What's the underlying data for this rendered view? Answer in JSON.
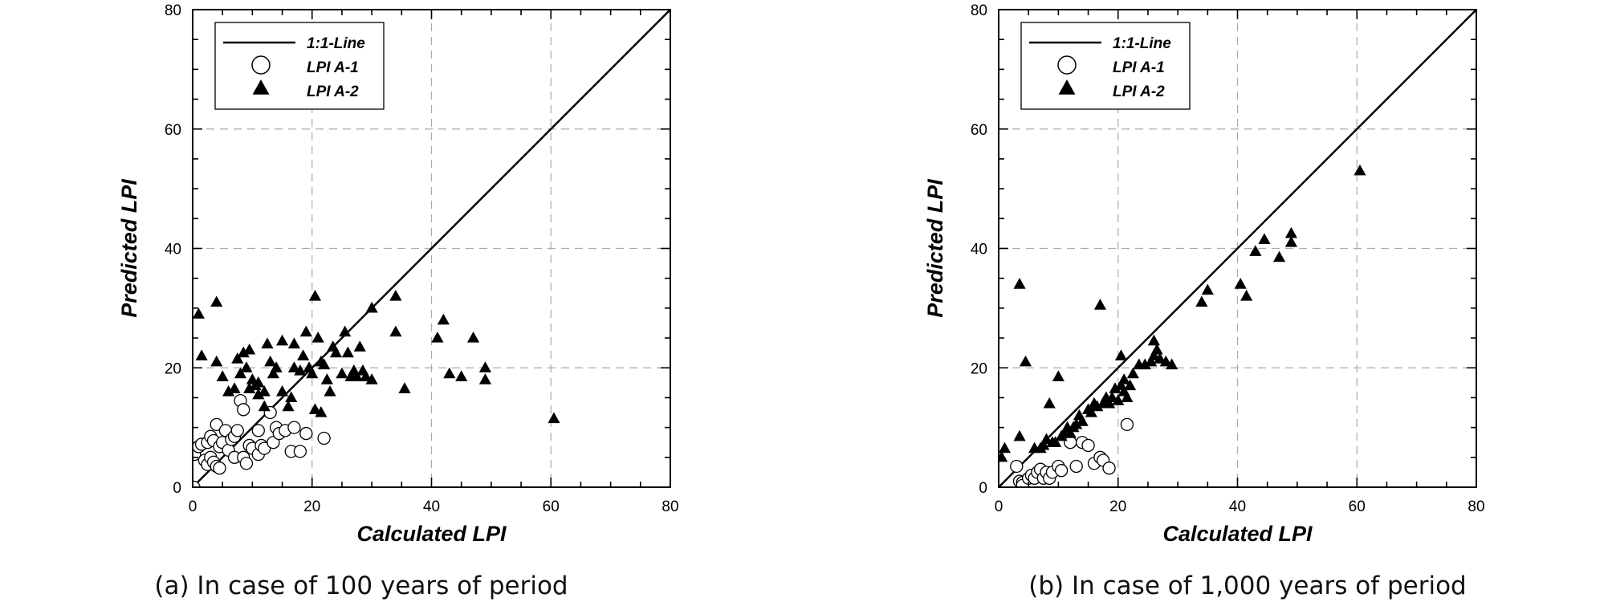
{
  "chart_data": [
    {
      "type": "scatter",
      "caption": "(a) In case of 100 years of period",
      "xlabel": "Calculated LPI",
      "ylabel": "Predicted LPI",
      "xlim": [
        0,
        80
      ],
      "ylim": [
        0,
        80
      ],
      "xticks": [
        "0",
        "20",
        "40",
        "60",
        "80"
      ],
      "yticks": [
        "0",
        "20",
        "40",
        "60",
        "80"
      ],
      "grid": true,
      "legend_position": "top-left",
      "legend": [
        "1:1-Line",
        "LPI A-1",
        "LPI A-2"
      ],
      "reference_line": {
        "name": "1:1-Line",
        "x": [
          0,
          80
        ],
        "y": [
          0,
          80
        ]
      },
      "series": [
        {
          "name": "LPI A-1",
          "marker": "open-circle",
          "points": [
            [
              0.2,
              0
            ],
            [
              0.3,
              5.5
            ],
            [
              1,
              6.8
            ],
            [
              1.5,
              7.2
            ],
            [
              2,
              4.5
            ],
            [
              2.5,
              3.8
            ],
            [
              2.5,
              7.5
            ],
            [
              3,
              5
            ],
            [
              3,
              8.5
            ],
            [
              3.5,
              4.2
            ],
            [
              3.5,
              7.8
            ],
            [
              4,
              3.5
            ],
            [
              4,
              10.5
            ],
            [
              4.5,
              3.2
            ],
            [
              4.5,
              6.8
            ],
            [
              5,
              7.5
            ],
            [
              5.5,
              9.5
            ],
            [
              6,
              6.2
            ],
            [
              6.5,
              8
            ],
            [
              7,
              8.5
            ],
            [
              7,
              5
            ],
            [
              7.5,
              9.5
            ],
            [
              8,
              14.5
            ],
            [
              8.5,
              13
            ],
            [
              8.5,
              5
            ],
            [
              9,
              4
            ],
            [
              9.5,
              7
            ],
            [
              10,
              6.5
            ],
            [
              11,
              5.5
            ],
            [
              11,
              9.5
            ],
            [
              11.5,
              7
            ],
            [
              12,
              6.5
            ],
            [
              13,
              12.5
            ],
            [
              13.5,
              7.5
            ],
            [
              14,
              10
            ],
            [
              14.5,
              9
            ],
            [
              15.5,
              9.5
            ],
            [
              16.5,
              6
            ],
            [
              17,
              10
            ],
            [
              18,
              6
            ],
            [
              19,
              9
            ],
            [
              22,
              8.2
            ]
          ]
        },
        {
          "name": "LPI A-2",
          "marker": "filled-triangle",
          "points": [
            [
              1,
              29
            ],
            [
              1.5,
              22
            ],
            [
              4,
              31
            ],
            [
              4,
              21
            ],
            [
              5,
              18.5
            ],
            [
              6,
              16
            ],
            [
              7,
              16.5
            ],
            [
              7.5,
              21.5
            ],
            [
              8,
              19
            ],
            [
              8.5,
              22.5
            ],
            [
              9,
              20
            ],
            [
              9.5,
              23
            ],
            [
              9.5,
              16.5
            ],
            [
              10,
              18
            ],
            [
              10.5,
              17
            ],
            [
              11,
              15.5
            ],
            [
              11,
              17.5
            ],
            [
              12,
              16
            ],
            [
              12,
              13.5
            ],
            [
              12.5,
              24
            ],
            [
              13,
              21
            ],
            [
              13.5,
              19
            ],
            [
              14,
              20
            ],
            [
              15,
              24.5
            ],
            [
              15,
              16
            ],
            [
              16,
              13.5
            ],
            [
              16.5,
              15
            ],
            [
              17,
              24
            ],
            [
              17,
              20
            ],
            [
              18,
              19.5
            ],
            [
              18.5,
              22
            ],
            [
              19,
              26
            ],
            [
              19.5,
              20
            ],
            [
              20,
              19
            ],
            [
              20.5,
              32
            ],
            [
              20.5,
              13
            ],
            [
              21,
              25
            ],
            [
              21.5,
              12.5
            ],
            [
              21.5,
              21
            ],
            [
              22,
              20.5
            ],
            [
              22.5,
              18
            ],
            [
              23,
              16
            ],
            [
              23.5,
              23.5
            ],
            [
              24,
              22.5
            ],
            [
              25,
              19
            ],
            [
              25.5,
              26
            ],
            [
              26,
              22.5
            ],
            [
              26.5,
              18.5
            ],
            [
              27,
              19.5
            ],
            [
              27.5,
              18.5
            ],
            [
              28,
              23.5
            ],
            [
              28.5,
              19.5
            ],
            [
              29,
              18.5
            ],
            [
              30,
              18
            ],
            [
              30,
              30
            ],
            [
              34,
              32
            ],
            [
              34,
              26
            ],
            [
              35.5,
              16.5
            ],
            [
              41,
              25
            ],
            [
              42,
              28
            ],
            [
              43,
              19
            ],
            [
              45,
              18.5
            ],
            [
              47,
              25
            ],
            [
              49,
              20
            ],
            [
              49,
              18
            ],
            [
              60.5,
              11.5
            ]
          ]
        }
      ]
    },
    {
      "type": "scatter",
      "caption": "(b) In case of 1,000 years of period",
      "xlabel": "Calculated LPI",
      "ylabel": "Predicted LPI",
      "xlim": [
        0,
        80
      ],
      "ylim": [
        0,
        80
      ],
      "xticks": [
        "0",
        "20",
        "40",
        "60",
        "80"
      ],
      "yticks": [
        "0",
        "20",
        "40",
        "60",
        "80"
      ],
      "grid": true,
      "legend_position": "top-left",
      "legend": [
        "1:1-Line",
        "LPI A-1",
        "LPI A-2"
      ],
      "reference_line": {
        "name": "1:1-Line",
        "x": [
          0,
          80
        ],
        "y": [
          0,
          80
        ]
      },
      "series": [
        {
          "name": "LPI A-1",
          "marker": "open-circle",
          "points": [
            [
              3,
              3.5
            ],
            [
              3.5,
              1
            ],
            [
              4,
              0.8
            ],
            [
              4,
              0.3
            ],
            [
              5,
              1.5
            ],
            [
              5.5,
              2
            ],
            [
              6,
              1.5
            ],
            [
              6.5,
              2.5
            ],
            [
              7,
              3
            ],
            [
              7.5,
              1.5
            ],
            [
              8,
              2.5
            ],
            [
              8.5,
              1.5
            ],
            [
              9,
              2.5
            ],
            [
              10,
              3.5
            ],
            [
              10.5,
              2.8
            ],
            [
              12,
              7.5
            ],
            [
              13,
              3.5
            ],
            [
              14,
              7.5
            ],
            [
              15,
              7
            ],
            [
              16,
              4
            ],
            [
              17,
              5
            ],
            [
              17.5,
              4.5
            ],
            [
              18.5,
              3.2
            ],
            [
              21.5,
              10.5
            ]
          ]
        },
        {
          "name": "LPI A-2",
          "marker": "filled-triangle",
          "points": [
            [
              0.5,
              5
            ],
            [
              1,
              6.5
            ],
            [
              3.5,
              34
            ],
            [
              3.5,
              8.5
            ],
            [
              4.5,
              21
            ],
            [
              6,
              6.5
            ],
            [
              7,
              6.5
            ],
            [
              7.5,
              7
            ],
            [
              8,
              8
            ],
            [
              8.5,
              14
            ],
            [
              9,
              7.5
            ],
            [
              9.5,
              7.5
            ],
            [
              10,
              18.5
            ],
            [
              10.5,
              8.5
            ],
            [
              11,
              9
            ],
            [
              11.5,
              10
            ],
            [
              12,
              9
            ],
            [
              12.5,
              10
            ],
            [
              13,
              10.5
            ],
            [
              13.5,
              12
            ],
            [
              14,
              11
            ],
            [
              15,
              13
            ],
            [
              15.5,
              12.5
            ],
            [
              16,
              14
            ],
            [
              16.5,
              13.5
            ],
            [
              17,
              30.5
            ],
            [
              17.5,
              14
            ],
            [
              18,
              15
            ],
            [
              18.5,
              14
            ],
            [
              19,
              15
            ],
            [
              19.5,
              16.5
            ],
            [
              20,
              14.5
            ],
            [
              20.5,
              22
            ],
            [
              20.5,
              17
            ],
            [
              21,
              18
            ],
            [
              21,
              16
            ],
            [
              21.5,
              15
            ],
            [
              22,
              17
            ],
            [
              22.5,
              19
            ],
            [
              23.5,
              20.5
            ],
            [
              24.5,
              20.5
            ],
            [
              25.5,
              21
            ],
            [
              26,
              22
            ],
            [
              26,
              24.5
            ],
            [
              26.5,
              23
            ],
            [
              27,
              21.5
            ],
            [
              28,
              21
            ],
            [
              29,
              20.5
            ],
            [
              34,
              31
            ],
            [
              35,
              33
            ],
            [
              40.5,
              34
            ],
            [
              41.5,
              32
            ],
            [
              43,
              39.5
            ],
            [
              44.5,
              41.5
            ],
            [
              47,
              38.5
            ],
            [
              49,
              42.5
            ],
            [
              49,
              41
            ],
            [
              60.5,
              53
            ]
          ]
        }
      ]
    }
  ]
}
